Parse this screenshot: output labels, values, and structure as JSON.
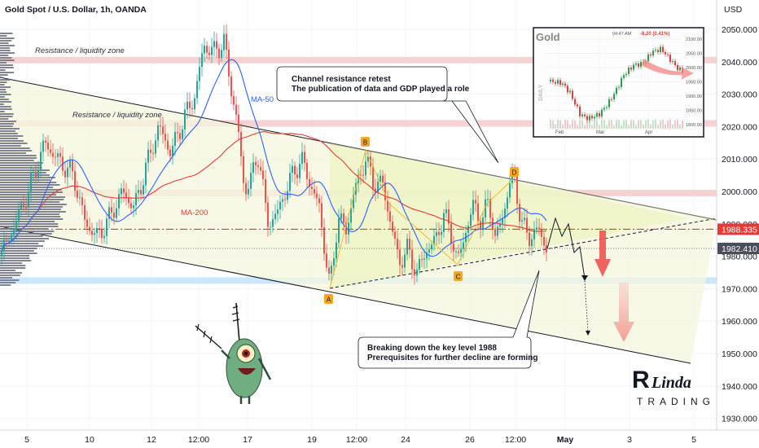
{
  "header": {
    "symbol_title": "Gold Spot / U.S. Dollar, 1h, OANDA",
    "currency": "USD"
  },
  "colors": {
    "ma50": "#2962ff",
    "ma200": "#e53935",
    "candle_up": "#26a69a",
    "candle_down": "#ef5350",
    "level_line": "#e53935",
    "resistance_zone": "#f3c8c8",
    "support_zone": "#bbdefb",
    "triangle_fill": "#eef4c8",
    "channel_fill": "#f3f7dc",
    "badge": "#f5a623",
    "arrow_red": "#ef5350"
  },
  "chart_data": {
    "type": "candlestick",
    "title": "Gold Spot / U.S. Dollar, 1h, OANDA",
    "ylabel": "USD",
    "ylim": [
      1925,
      2055
    ],
    "y_ticks": [
      1930,
      1940,
      1950,
      1960,
      1970,
      1980,
      1990,
      2000,
      2010,
      2020,
      2030,
      2040,
      2050
    ],
    "y_tick_labels": [
      "1930.000",
      "1940.000",
      "1950.000",
      "1960.000",
      "1970.000",
      "1980.000",
      "1990.000",
      "2000.000",
      "2010.000",
      "2020.000",
      "2030.000",
      "2040.000",
      "2050.000"
    ],
    "x_tick_labels": [
      "5",
      "10",
      "12",
      "12:00",
      "17",
      "19",
      "12:00",
      "24",
      "26",
      "12:00",
      "May",
      "3",
      "5"
    ],
    "price_labels": [
      {
        "value": 1988.335,
        "label": "1988.335",
        "color": "#e53935"
      },
      {
        "value": 1982.41,
        "label": "1982.410",
        "color": "#4a4e5a"
      }
    ],
    "key_level": 1988.335,
    "zones": [
      {
        "label": "Resistance / liquidity zone",
        "from": 2039.5,
        "to": 2041.5
      },
      {
        "label": "Resistance / liquidity zone",
        "from": 2020.0,
        "to": 2022.0
      },
      {
        "label": "",
        "from": 1998.5,
        "to": 2000.5
      },
      {
        "label": "",
        "from": 1971.5,
        "to": 1973.5
      }
    ],
    "indicators": [
      {
        "name": "MA-50",
        "color": "#2962ff"
      },
      {
        "name": "MA-200",
        "color": "#e53935"
      }
    ],
    "pattern_points": [
      {
        "label": "A",
        "value": 1969
      },
      {
        "label": "B",
        "value": 2013
      },
      {
        "label": "C",
        "value": 1976
      },
      {
        "label": "D",
        "value": 2005
      }
    ],
    "annotations": [
      {
        "line1": "Channel resistance retest",
        "line2": "The publication of data and GDP played a role"
      },
      {
        "line1": "Breaking down the key level 1988",
        "line2": "Prerequisites for further decline are forming"
      }
    ],
    "inset": {
      "title": "Gold",
      "side_label": "DAILY",
      "header_time": "04:47 AM",
      "change": "-8.20 (0.41%)",
      "y_labels": [
        "2100.00",
        "2050.00",
        "2000.00",
        "1950.00",
        "1900.00",
        "1850.00",
        "1800.00"
      ],
      "x_labels": [
        "Feb",
        "Mar",
        "Apr"
      ]
    }
  },
  "logo": {
    "line1": "Linda",
    "line2": "TRADING"
  }
}
